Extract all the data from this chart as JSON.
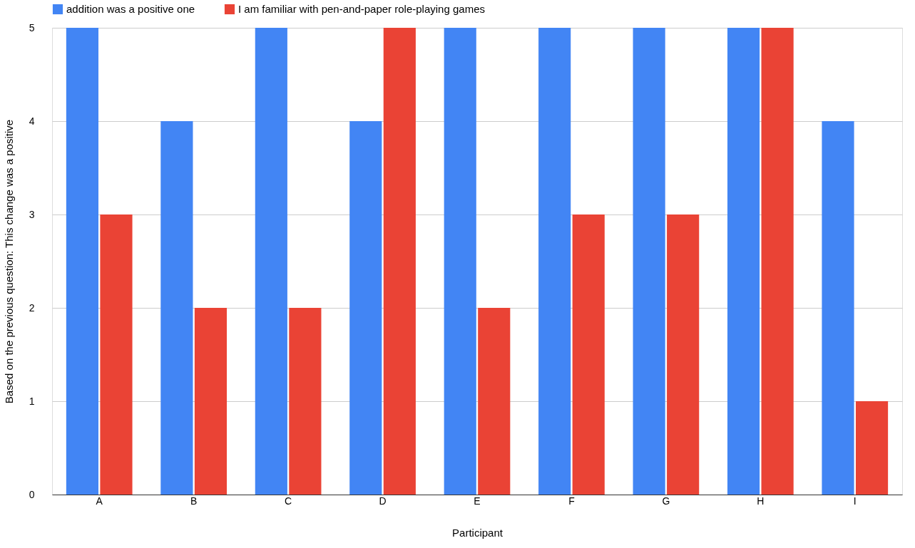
{
  "chart_data": {
    "type": "bar",
    "xlabel": "Participant",
    "ylabel": "Based on the previous question: This change was a positive",
    "categories": [
      "A",
      "B",
      "C",
      "D",
      "E",
      "F",
      "G",
      "H",
      "I"
    ],
    "series": [
      {
        "name": "addition was a positive one",
        "color": "#4285f4",
        "values": [
          5,
          4,
          5,
          4,
          5,
          5,
          5,
          5,
          4
        ]
      },
      {
        "name": "I am familiar with pen-and-paper role-playing games",
        "color": "#ea4335",
        "values": [
          3,
          2,
          2,
          5,
          2,
          3,
          3,
          5,
          1
        ]
      }
    ],
    "ylim": [
      0,
      5
    ],
    "yticks": [
      0,
      1,
      2,
      3,
      4,
      5
    ],
    "grid": "y",
    "legend": "top"
  }
}
